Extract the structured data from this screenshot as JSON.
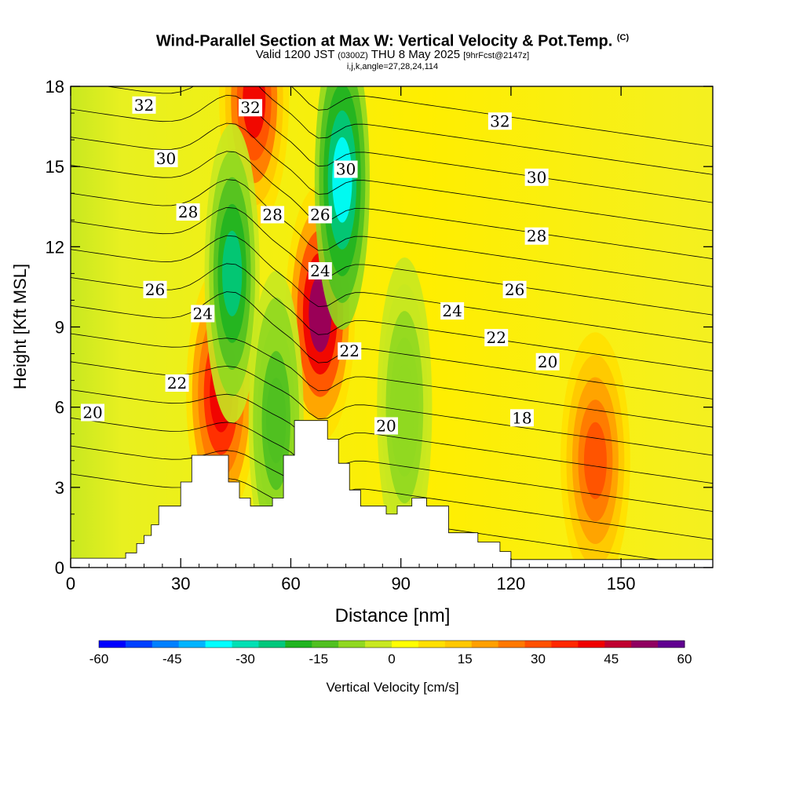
{
  "header": {
    "title": "Wind-Parallel Section at Max W: Vertical Velocity & Pot.Temp.",
    "copyright": "(C)",
    "valid_prefix": "Valid 1200 JST",
    "valid_utc": "(0300Z)",
    "valid_date": "THU 8 May 2025",
    "forecast": "[9hrFcst@2147z]",
    "indices": "i,j,k,angle=27,28,24,114"
  },
  "chart_data": {
    "type": "heatmap",
    "title": "Wind-Parallel Section at Max W: Vertical Velocity & Pot.Temp.",
    "xlabel": "Distance [nm]",
    "ylabel": "Height [Kft MSL]",
    "xlim": [
      0,
      175
    ],
    "ylim": [
      0,
      18
    ],
    "x_ticks": [
      0,
      30,
      60,
      90,
      120,
      150
    ],
    "y_ticks": [
      0,
      3,
      6,
      9,
      12,
      15,
      18
    ],
    "grid": false,
    "colorbar": {
      "label": "Vertical Velocity [cm/s]",
      "ticks": [
        -60,
        -45,
        -30,
        -15,
        0,
        15,
        30,
        45,
        60
      ],
      "colors": [
        "#0000ff",
        "#0040ff",
        "#0080ff",
        "#00b4ff",
        "#00ffff",
        "#00e0b4",
        "#00c87c",
        "#20b420",
        "#50c020",
        "#90d820",
        "#c8e820",
        "#ffff00",
        "#ffe000",
        "#ffc800",
        "#ffa000",
        "#ff7800",
        "#ff5000",
        "#ff2800",
        "#f00000",
        "#c00030",
        "#900060",
        "#600090"
      ]
    },
    "terrain_profile": [
      [
        0,
        0.35
      ],
      [
        15,
        0.35
      ],
      [
        15,
        0.55
      ],
      [
        18,
        0.55
      ],
      [
        18,
        0.9
      ],
      [
        20,
        0.9
      ],
      [
        20,
        1.2
      ],
      [
        22,
        1.2
      ],
      [
        22,
        1.6
      ],
      [
        24,
        1.6
      ],
      [
        24,
        2.3
      ],
      [
        30,
        2.3
      ],
      [
        30,
        3.2
      ],
      [
        33,
        3.2
      ],
      [
        33,
        4.2
      ],
      [
        43,
        4.2
      ],
      [
        43,
        3.2
      ],
      [
        46,
        3.2
      ],
      [
        46,
        2.6
      ],
      [
        49,
        2.6
      ],
      [
        49,
        2.3
      ],
      [
        55,
        2.3
      ],
      [
        55,
        2.6
      ],
      [
        58,
        2.6
      ],
      [
        58,
        4.2
      ],
      [
        61,
        4.2
      ],
      [
        61,
        5.5
      ],
      [
        70,
        5.5
      ],
      [
        70,
        4.8
      ],
      [
        73,
        4.8
      ],
      [
        73,
        3.9
      ],
      [
        76,
        3.9
      ],
      [
        76,
        2.9
      ],
      [
        79,
        2.9
      ],
      [
        79,
        2.3
      ],
      [
        86,
        2.3
      ],
      [
        86,
        2.0
      ],
      [
        89,
        2.0
      ],
      [
        89,
        2.3
      ],
      [
        93,
        2.3
      ],
      [
        93,
        2.6
      ],
      [
        97,
        2.6
      ],
      [
        97,
        2.3
      ],
      [
        103,
        2.3
      ],
      [
        103,
        1.3
      ],
      [
        111,
        1.3
      ],
      [
        111,
        0.95
      ],
      [
        117,
        0.95
      ],
      [
        117,
        0.6
      ],
      [
        120,
        0.6
      ],
      [
        120,
        0.3
      ],
      [
        175,
        0.3
      ]
    ],
    "updrafts": [
      {
        "x": 41,
        "y": 6.5,
        "w_cms": 45
      },
      {
        "x": 68,
        "y": 9.5,
        "w_cms": 55
      },
      {
        "x": 50,
        "y": 17.5,
        "w_cms": 40
      },
      {
        "x": 143,
        "y": 4,
        "w_cms": 30
      }
    ],
    "downdrafts": [
      {
        "x": 44,
        "y": 11,
        "w_cms": -25
      },
      {
        "x": 74,
        "y": 14.5,
        "w_cms": -35
      },
      {
        "x": 56,
        "y": 5.5,
        "w_cms": -15
      },
      {
        "x": 91,
        "y": 6,
        "w_cms": -10
      }
    ],
    "contour_labels": [
      {
        "text": "32",
        "x": 20,
        "y": 17.3
      },
      {
        "text": "30",
        "x": 26,
        "y": 15.3
      },
      {
        "text": "28",
        "x": 32,
        "y": 13.3
      },
      {
        "text": "26",
        "x": 23,
        "y": 10.4
      },
      {
        "text": "24",
        "x": 36,
        "y": 9.5
      },
      {
        "text": "22",
        "x": 29,
        "y": 6.9
      },
      {
        "text": "20",
        "x": 6,
        "y": 5.8
      },
      {
        "text": "32",
        "x": 49,
        "y": 17.2
      },
      {
        "text": "30",
        "x": 75,
        "y": 14.9
      },
      {
        "text": "28",
        "x": 55,
        "y": 13.2
      },
      {
        "text": "26",
        "x": 68,
        "y": 13.2
      },
      {
        "text": "24",
        "x": 68,
        "y": 11.1
      },
      {
        "text": "22",
        "x": 76,
        "y": 8.1
      },
      {
        "text": "20",
        "x": 86,
        "y": 5.3
      },
      {
        "text": "32",
        "x": 117,
        "y": 16.7
      },
      {
        "text": "30",
        "x": 127,
        "y": 14.6
      },
      {
        "text": "28",
        "x": 127,
        "y": 12.4
      },
      {
        "text": "26",
        "x": 121,
        "y": 10.4
      },
      {
        "text": "24",
        "x": 104,
        "y": 9.6
      },
      {
        "text": "22",
        "x": 116,
        "y": 8.6
      },
      {
        "text": "20",
        "x": 130,
        "y": 7.7
      },
      {
        "text": "18",
        "x": 123,
        "y": 5.6
      }
    ]
  }
}
